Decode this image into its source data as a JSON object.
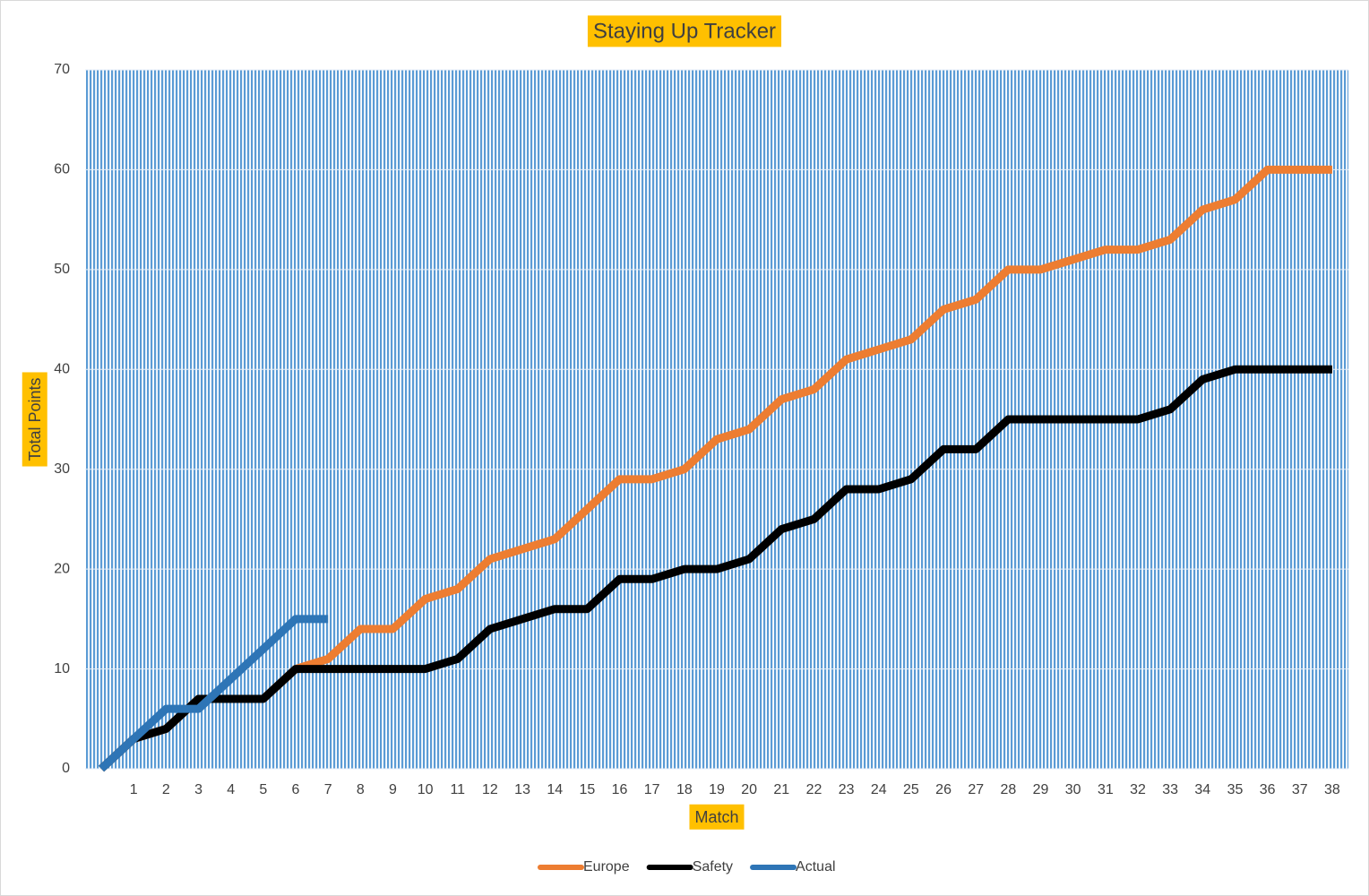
{
  "chart_data": {
    "type": "line",
    "title": "Staying Up Tracker",
    "x_label": "Match",
    "y_label": "Total Points",
    "categories": [
      null,
      "1",
      "2",
      "3",
      "4",
      "5",
      "6",
      "7",
      "8",
      "9",
      "10",
      "11",
      "12",
      "13",
      "14",
      "15",
      "16",
      "17",
      "18",
      "19",
      "20",
      "21",
      "22",
      "23",
      "24",
      "25",
      "26",
      "27",
      "28",
      "29",
      "30",
      "31",
      "32",
      "33",
      "34",
      "35",
      "36",
      "37",
      "38"
    ],
    "series": [
      {
        "name": "Europe",
        "color": "#ed7d31",
        "values": [
          0,
          3,
          4,
          7,
          7,
          7,
          10,
          11,
          14,
          14,
          17,
          18,
          21,
          22,
          23,
          26,
          29,
          29,
          30,
          33,
          34,
          37,
          38,
          41,
          42,
          43,
          46,
          47,
          50,
          50,
          51,
          52,
          52,
          53,
          56,
          57,
          60,
          60,
          60
        ]
      },
      {
        "name": "Safety",
        "color": "#000000",
        "values": [
          0,
          3,
          4,
          7,
          7,
          7,
          10,
          10,
          10,
          10,
          10,
          11,
          14,
          15,
          16,
          16,
          19,
          19,
          20,
          20,
          21,
          24,
          25,
          28,
          28,
          29,
          32,
          32,
          35,
          35,
          35,
          35,
          35,
          36,
          39,
          40,
          40,
          40,
          40
        ]
      },
      {
        "name": "Actual",
        "color": "#2e75b6",
        "values": [
          0,
          3,
          6,
          6,
          9,
          12,
          15,
          15,
          null,
          null,
          null,
          null,
          null,
          null,
          null,
          null,
          null,
          null,
          null,
          null,
          null,
          null,
          null,
          null,
          null,
          null,
          null,
          null,
          null,
          null,
          null,
          null,
          null,
          null,
          null,
          null,
          null,
          null,
          null
        ]
      }
    ],
    "ylim": [
      0,
      70
    ],
    "yticks": [
      0,
      10,
      20,
      30,
      40,
      50,
      60,
      70
    ],
    "grid": true,
    "legend": "bottom"
  }
}
